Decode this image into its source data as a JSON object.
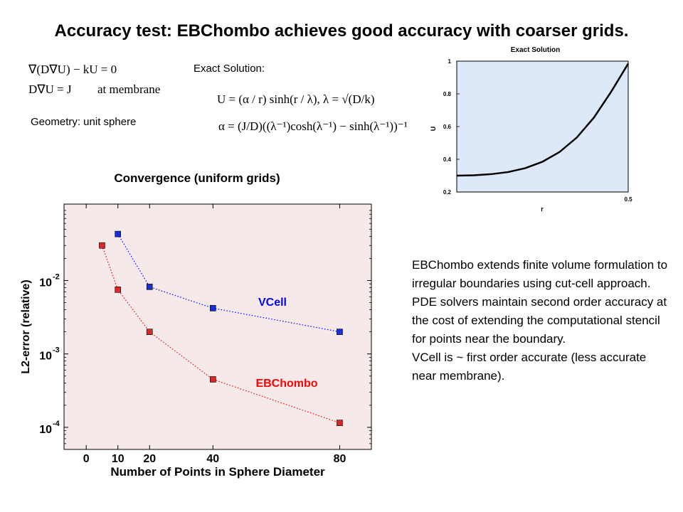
{
  "title": "Accuracy test: EBChombo achieves good accuracy with coarser grids.",
  "equations": {
    "pde": "∇(D∇U) − kU = 0",
    "bc_lhs": "D∇U = J",
    "bc_rhs": "at membrane",
    "geometry": "Geometry: unit sphere",
    "exact_label": "Exact Solution:",
    "exact_u": "U = (α / r) sinh(r / λ),   λ = √(D/k)",
    "exact_alpha": "α = (J/D)((λ⁻¹)cosh(λ⁻¹) − sinh(λ⁻¹))⁻¹"
  },
  "description": {
    "paragraph1": "EBChombo extends finite volume formulation to irregular boundaries using cut-cell approach. PDE solvers maintain second order accuracy at the cost of extending the computational stencil for points near the boundary.",
    "paragraph2": "VCell  is ~ first order accurate (less accurate near membrane)."
  },
  "chart_data": [
    {
      "type": "line",
      "title": "Convergence (uniform grids)",
      "xlabel": "Number of Points in Sphere Diameter",
      "ylabel": "L2-error (relative)",
      "xlim": [
        -7,
        90
      ],
      "ylim": [
        5e-05,
        0.11
      ],
      "yscale": "log",
      "xticks": [
        0,
        10,
        20,
        40,
        80
      ],
      "yticks": [
        {
          "value": 0.01,
          "base": "10",
          "exp": "-2"
        },
        {
          "value": 0.001,
          "base": "10",
          "exp": "-3"
        },
        {
          "value": 0.0001,
          "base": "10",
          "exp": "-4"
        }
      ],
      "background": "#f5e9e9",
      "series": [
        {
          "name": "VCell",
          "color": "#0000ff",
          "marker_color": "#1a2fd0",
          "x": [
            10,
            20,
            40,
            80
          ],
          "y": [
            0.043,
            0.0082,
            0.0042,
            0.002
          ]
        },
        {
          "name": "EBChombo",
          "color": "#ff0000",
          "marker_color": "#d42a2a",
          "x": [
            5,
            10,
            20,
            40,
            80
          ],
          "y": [
            0.03,
            0.0075,
            0.002,
            0.00045,
            0.000115
          ]
        }
      ]
    },
    {
      "type": "line",
      "title": "Exact Solution",
      "xlabel": "r",
      "ylabel": "U",
      "xlim": [
        0,
        0.5
      ],
      "ylim": [
        0.2,
        1
      ],
      "xticks": [
        0.5
      ],
      "yticks": [
        1,
        0.8,
        0.6,
        0.4,
        0.2
      ],
      "background": "#dde8f8",
      "series": [
        {
          "x": [
            0,
            0.05,
            0.1,
            0.15,
            0.2,
            0.25,
            0.3,
            0.35,
            0.4,
            0.45,
            0.5
          ],
          "y": [
            0.3,
            0.302,
            0.309,
            0.322,
            0.346,
            0.385,
            0.445,
            0.533,
            0.655,
            0.812,
            0.985
          ]
        }
      ]
    }
  ]
}
